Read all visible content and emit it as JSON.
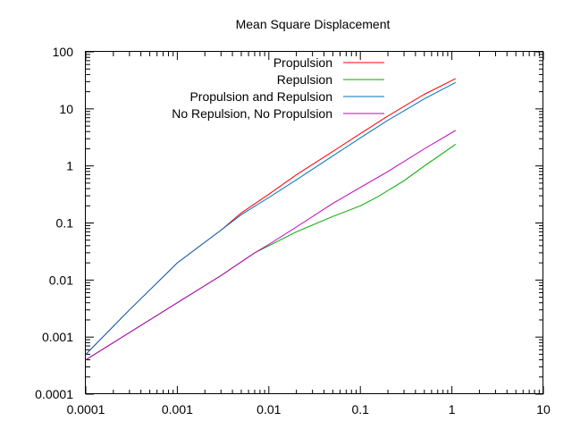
{
  "chart_data": {
    "type": "line",
    "title": "Mean Square Displacement",
    "xlabel": "",
    "ylabel": "",
    "x_scale": "log",
    "y_scale": "log",
    "xlim": [
      0.0001,
      10
    ],
    "ylim": [
      0.0001,
      100
    ],
    "x_tick_labels": [
      "0.0001",
      "0.001",
      "0.01",
      "0.1",
      "1",
      "10"
    ],
    "x_tick_values": [
      0.0001,
      0.001,
      0.01,
      0.1,
      1,
      10
    ],
    "y_tick_labels": [
      "0.0001",
      "0.001",
      "0.01",
      "0.1",
      "1",
      "10",
      "100"
    ],
    "y_tick_values": [
      0.0001,
      0.001,
      0.01,
      0.1,
      1,
      10,
      100
    ],
    "grid": false,
    "legend_position": "top-right",
    "series": [
      {
        "name": "Propulsion",
        "color": "#ff0000",
        "x": [
          0.0001,
          0.0003,
          0.001,
          0.003,
          0.005,
          0.01,
          0.02,
          0.05,
          0.1,
          0.2,
          0.5,
          1.1
        ],
        "y": [
          0.0005,
          0.003,
          0.02,
          0.075,
          0.15,
          0.32,
          0.7,
          1.8,
          3.7,
          7.5,
          18,
          34
        ]
      },
      {
        "name": "Repulsion",
        "color": "#00aa00",
        "x": [
          0.0001,
          0.0003,
          0.001,
          0.003,
          0.007,
          0.01,
          0.02,
          0.05,
          0.1,
          0.15,
          0.3,
          0.5,
          1.1
        ],
        "y": [
          0.0004,
          0.0012,
          0.004,
          0.012,
          0.03,
          0.04,
          0.07,
          0.13,
          0.2,
          0.28,
          0.55,
          1.0,
          2.4
        ]
      },
      {
        "name": "Propulsion and Repulsion",
        "color": "#0070c0",
        "x": [
          0.0001,
          0.0003,
          0.001,
          0.003,
          0.005,
          0.01,
          0.02,
          0.05,
          0.1,
          0.2,
          0.5,
          1.1
        ],
        "y": [
          0.0005,
          0.003,
          0.02,
          0.075,
          0.14,
          0.28,
          0.57,
          1.5,
          3.1,
          6.3,
          15,
          29
        ]
      },
      {
        "name": "No Repulsion, No Propulsion",
        "color": "#c000c0",
        "x": [
          0.0001,
          0.0003,
          0.001,
          0.003,
          0.007,
          0.01,
          0.02,
          0.05,
          0.1,
          0.2,
          0.5,
          1.1
        ],
        "y": [
          0.0004,
          0.0012,
          0.004,
          0.012,
          0.03,
          0.042,
          0.085,
          0.22,
          0.42,
          0.8,
          2.0,
          4.2
        ]
      }
    ]
  }
}
